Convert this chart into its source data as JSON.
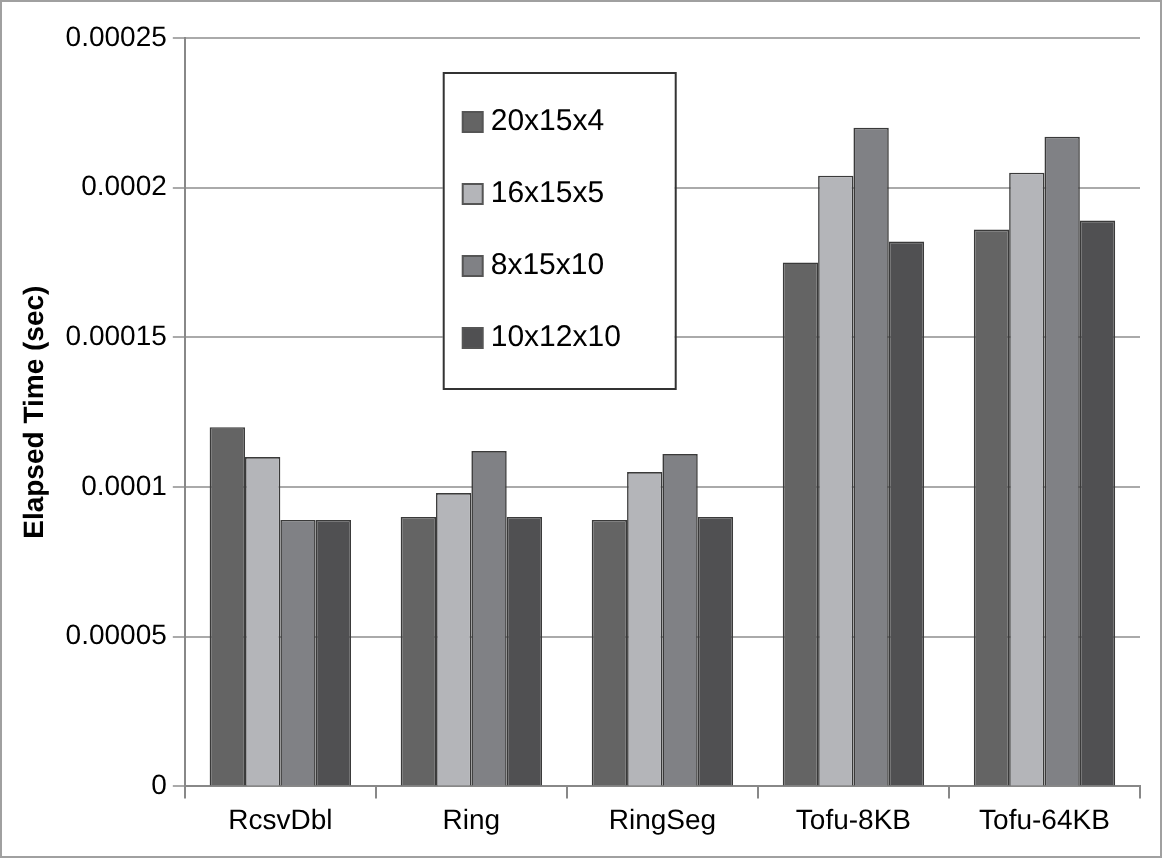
{
  "chart_data": {
    "type": "bar",
    "ylabel": "Elapsed Time (sec)",
    "categories": [
      "RcsvDbl",
      "Ring",
      "RingSeg",
      "Tofu-8KB",
      "Tofu-64KB"
    ],
    "series": [
      {
        "name": "20x15x4",
        "color": "#646464",
        "values": [
          0.00012,
          9e-05,
          8.9e-05,
          0.000175,
          0.000186
        ]
      },
      {
        "name": "16x15x5",
        "color": "#b4b5b9",
        "values": [
          0.00011,
          9.8e-05,
          0.000105,
          0.000204,
          0.000205
        ]
      },
      {
        "name": "8x15x10",
        "color": "#808185",
        "values": [
          8.9e-05,
          0.000112,
          0.000111,
          0.00022,
          0.000217
        ]
      },
      {
        "name": "10x12x10",
        "color": "#505052",
        "values": [
          8.9e-05,
          9e-05,
          9e-05,
          0.000182,
          0.000189
        ]
      }
    ],
    "ylim": [
      0,
      0.00025
    ],
    "yticks": [
      0,
      {
        "value": 5e-05,
        "label": "0.00005"
      },
      0.0001,
      0.00015,
      0.0002,
      0.00025
    ],
    "grid": "y",
    "legend": "top"
  }
}
